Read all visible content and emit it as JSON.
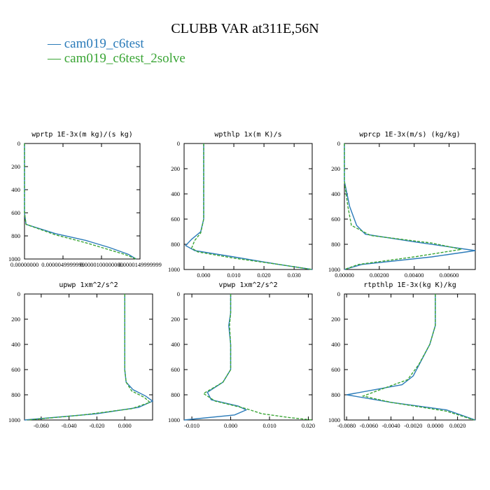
{
  "title": "CLUBB VAR at311E,56N",
  "legend": [
    {
      "label": "— cam019_c6test",
      "color": "#2b7bb9"
    },
    {
      "label": "— cam019_c6test_2solve",
      "color": "#3aa535"
    }
  ],
  "chart_data": [
    {
      "type": "line",
      "title": "wprtp   1E-3x(m kg)/(s kg)",
      "xlim": [
        0.0,
        1.49999999e-05
      ],
      "ylim": [
        1000,
        0
      ],
      "xticks": [
        0.0,
        4.9999999e-06,
        1e-05,
        1.49999999e-05
      ],
      "xtick_labels": [
        "0.00000000",
        "0.0000049999999",
        "0.0000100000000",
        "0.0000149999999"
      ],
      "yticks": [
        0,
        200,
        400,
        600,
        800,
        1000
      ],
      "series": [
        {
          "color": "#2b7bb9",
          "dash": false,
          "points": [
            [
              0,
              0
            ],
            [
              0,
              400
            ],
            [
              0,
              600
            ],
            [
              2e-07,
              700
            ],
            [
              4e-06,
              780
            ],
            [
              8e-06,
              840
            ],
            [
              1.1e-05,
              900
            ],
            [
              1.35e-05,
              960
            ],
            [
              1.45e-05,
              1000
            ]
          ]
        },
        {
          "color": "#3aa535",
          "dash": true,
          "points": [
            [
              0,
              0
            ],
            [
              0,
              400
            ],
            [
              0,
              600
            ],
            [
              2e-07,
              700
            ],
            [
              4e-06,
              790
            ],
            [
              8e-06,
              860
            ],
            [
              1.1e-05,
              920
            ],
            [
              1.3e-05,
              960
            ],
            [
              1.45e-05,
              1000
            ]
          ]
        }
      ]
    },
    {
      "type": "line",
      "title": "wpthlp   1x(m K)/s",
      "xlim": [
        -0.0065,
        0.036
      ],
      "ylim": [
        1000,
        0
      ],
      "xticks": [
        0.0,
        0.01,
        0.02,
        0.03
      ],
      "xtick_labels": [
        "0.000",
        "0.010",
        "0.020",
        "0.030"
      ],
      "yticks": [
        0,
        200,
        400,
        600,
        800,
        1000
      ],
      "series": [
        {
          "color": "#2b7bb9",
          "dash": false,
          "points": [
            [
              0,
              0
            ],
            [
              0,
              300
            ],
            [
              0,
              600
            ],
            [
              -0.001,
              700
            ],
            [
              -0.004,
              760
            ],
            [
              -0.006,
              810
            ],
            [
              -0.003,
              850
            ],
            [
              0.01,
              900
            ],
            [
              0.025,
              960
            ],
            [
              0.036,
              1000
            ]
          ]
        },
        {
          "color": "#3aa535",
          "dash": true,
          "points": [
            [
              0,
              0
            ],
            [
              0,
              300
            ],
            [
              0,
              600
            ],
            [
              -0.001,
              710
            ],
            [
              -0.003,
              770
            ],
            [
              -0.004,
              830
            ],
            [
              -0.002,
              860
            ],
            [
              0.01,
              910
            ],
            [
              0.025,
              960
            ],
            [
              0.036,
              1000
            ]
          ]
        }
      ]
    },
    {
      "type": "line",
      "title": "wprcp   1E-3x(m/s) (kg/kg)",
      "xlim": [
        0.0,
        0.0075
      ],
      "ylim": [
        1000,
        0
      ],
      "xticks": [
        0.0,
        0.002,
        0.004,
        0.006
      ],
      "xtick_labels": [
        "0.00000",
        "0.00200",
        "0.00400",
        "0.00600"
      ],
      "yticks": [
        0,
        200,
        400,
        600,
        800,
        1000
      ],
      "series": [
        {
          "color": "#2b7bb9",
          "dash": false,
          "points": [
            [
              0,
              0
            ],
            [
              0,
              300
            ],
            [
              0.0003,
              500
            ],
            [
              0.0007,
              650
            ],
            [
              0.0012,
              720
            ],
            [
              0.004,
              780
            ],
            [
              0.0075,
              850
            ],
            [
              0.005,
              900
            ],
            [
              0.001,
              960
            ],
            [
              0,
              1000
            ]
          ]
        },
        {
          "color": "#3aa535",
          "dash": true,
          "points": [
            [
              0,
              0
            ],
            [
              0,
              300
            ],
            [
              0.0002,
              500
            ],
            [
              0.0004,
              650
            ],
            [
              0.0015,
              730
            ],
            [
              0.005,
              790
            ],
            [
              0.0067,
              840
            ],
            [
              0.004,
              900
            ],
            [
              0.0008,
              960
            ],
            [
              0,
              1000
            ]
          ]
        }
      ]
    },
    {
      "type": "line",
      "title": "upwp   1xm^2/s^2",
      "xlim": [
        -0.072,
        0.02
      ],
      "ylim": [
        1000,
        0
      ],
      "xticks": [
        -0.06,
        -0.04,
        -0.02,
        0.0
      ],
      "xtick_labels": [
        "-0.060",
        "-0.040",
        "-0.020",
        "0.000"
      ],
      "yticks": [
        0,
        200,
        400,
        600,
        800,
        1000
      ],
      "series": [
        {
          "color": "#2b7bb9",
          "dash": false,
          "points": [
            [
              0,
              0
            ],
            [
              0,
              300
            ],
            [
              0,
              600
            ],
            [
              0.001,
              700
            ],
            [
              0.006,
              760
            ],
            [
              0.015,
              810
            ],
            [
              0.02,
              850
            ],
            [
              0.01,
              900
            ],
            [
              -0.02,
              950
            ],
            [
              -0.072,
              1000
            ]
          ]
        },
        {
          "color": "#3aa535",
          "dash": true,
          "points": [
            [
              0,
              0
            ],
            [
              0,
              300
            ],
            [
              0,
              600
            ],
            [
              0.001,
              700
            ],
            [
              0.005,
              770
            ],
            [
              0.014,
              820
            ],
            [
              0.018,
              860
            ],
            [
              0.005,
              910
            ],
            [
              -0.03,
              960
            ],
            [
              -0.07,
              1000
            ]
          ]
        }
      ]
    },
    {
      "type": "line",
      "title": "vpwp   1xm^2/s^2",
      "xlim": [
        -0.012,
        0.021
      ],
      "ylim": [
        1000,
        0
      ],
      "xticks": [
        -0.01,
        0.0,
        0.01,
        0.02
      ],
      "xtick_labels": [
        "-0.010",
        "0.000",
        "0.010",
        "0.020"
      ],
      "yticks": [
        0,
        200,
        400,
        600,
        800,
        1000
      ],
      "series": [
        {
          "color": "#2b7bb9",
          "dash": false,
          "points": [
            [
              0,
              0
            ],
            [
              0,
              150
            ],
            [
              -0.0005,
              250
            ],
            [
              0,
              400
            ],
            [
              0,
              600
            ],
            [
              -0.002,
              700
            ],
            [
              -0.006,
              780
            ],
            [
              -0.005,
              840
            ],
            [
              0.002,
              890
            ],
            [
              0.004,
              920
            ],
            [
              0.001,
              960
            ],
            [
              -0.012,
              1000
            ]
          ]
        },
        {
          "color": "#3aa535",
          "dash": true,
          "points": [
            [
              0,
              0
            ],
            [
              0,
              150
            ],
            [
              -0.0003,
              250
            ],
            [
              0,
              400
            ],
            [
              0,
              600
            ],
            [
              -0.002,
              700
            ],
            [
              -0.007,
              790
            ],
            [
              -0.004,
              850
            ],
            [
              0.004,
              910
            ],
            [
              0.008,
              950
            ],
            [
              0.015,
              980
            ],
            [
              0.021,
              1000
            ]
          ]
        }
      ]
    },
    {
      "type": "line",
      "title": "rtpthlp   1E-3x(kg K)/kg",
      "xlim": [
        -0.0082,
        0.0036
      ],
      "ylim": [
        1000,
        0
      ],
      "xticks": [
        -0.008,
        -0.006,
        -0.004,
        -0.002,
        0.0,
        0.002
      ],
      "xtick_labels": [
        "-0.0080",
        "-0.0060",
        "-0.0040",
        "-0.0020",
        "0.0000",
        "0.0020"
      ],
      "yticks": [
        0,
        200,
        400,
        600,
        800,
        1000
      ],
      "series": [
        {
          "color": "#2b7bb9",
          "dash": false,
          "points": [
            [
              0,
              0
            ],
            [
              0,
              250
            ],
            [
              -0.0005,
              400
            ],
            [
              -0.0014,
              550
            ],
            [
              -0.002,
              650
            ],
            [
              -0.003,
              720
            ],
            [
              -0.008,
              800
            ],
            [
              -0.004,
              860
            ],
            [
              0.001,
              920
            ],
            [
              0.0036,
              1000
            ]
          ]
        },
        {
          "color": "#3aa535",
          "dash": true,
          "points": [
            [
              0,
              0
            ],
            [
              0,
              250
            ],
            [
              -0.0005,
              400
            ],
            [
              -0.0015,
              560
            ],
            [
              -0.0025,
              680
            ],
            [
              -0.005,
              760
            ],
            [
              -0.0065,
              810
            ],
            [
              -0.004,
              860
            ],
            [
              0.001,
              930
            ],
            [
              0.0035,
              1000
            ]
          ]
        }
      ]
    }
  ]
}
